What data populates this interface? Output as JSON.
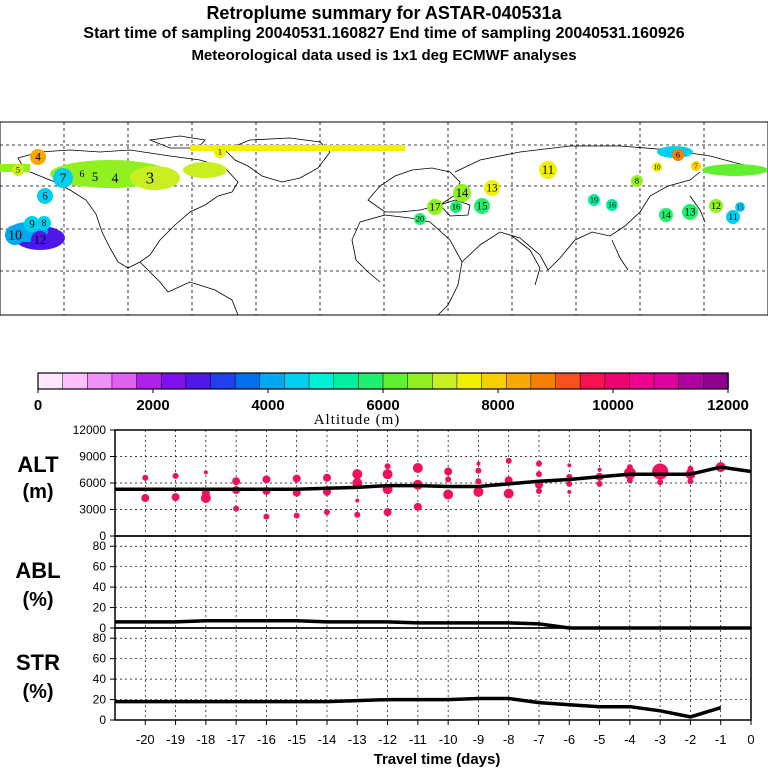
{
  "header": {
    "title": "Retroplume summary for ASTAR-040531a",
    "sampling": "Start time of sampling 20040531.160827     End time of sampling 20040531.160926",
    "met": "Meteorological data used is 1x1 deg ECMWF analyses"
  },
  "colorbar": {
    "label": "Altitude (m)",
    "ticks": [
      "0",
      "2000",
      "4000",
      "6000",
      "8000",
      "10000",
      "12000"
    ],
    "colors": [
      "#ffe8ff",
      "#ffc0ff",
      "#f090f8",
      "#e060f0",
      "#b020e8",
      "#8010f0",
      "#5018e8",
      "#2040f0",
      "#0070f0",
      "#00a8f0",
      "#00d0f0",
      "#00f0d8",
      "#00f0a0",
      "#20f070",
      "#60f030",
      "#90f020",
      "#c8f020",
      "#f0f000",
      "#f8d000",
      "#f8a800",
      "#f88000",
      "#f85020",
      "#f81050",
      "#f00070",
      "#f00090",
      "#e000a0",
      "#b000a0",
      "#900090"
    ]
  },
  "map_labels": [
    {
      "t": "4",
      "c": "#f8a800"
    },
    {
      "t": "5",
      "c": "#c8f020"
    },
    {
      "t": "6",
      "c": "#00d0f0"
    },
    {
      "t": "7",
      "c": "#00d0f0"
    },
    {
      "t": "6",
      "c": "#90f020"
    },
    {
      "t": "5",
      "c": "#90f020"
    },
    {
      "t": "4",
      "c": "#90f020"
    },
    {
      "t": "3",
      "c": "#c8f020"
    },
    {
      "t": "1",
      "c": "#f0f000"
    },
    {
      "t": "10",
      "c": "#00a8f0"
    },
    {
      "t": "9",
      "c": "#00d0f0"
    },
    {
      "t": "8",
      "c": "#00d0f0"
    },
    {
      "t": "12",
      "c": "#5018e8"
    },
    {
      "t": "14",
      "c": "#90f020"
    },
    {
      "t": "13",
      "c": "#f0f000"
    },
    {
      "t": "15",
      "c": "#20f070"
    },
    {
      "t": "16",
      "c": "#20f070"
    },
    {
      "t": "17",
      "c": "#90f020"
    },
    {
      "t": "20",
      "c": "#20f070"
    },
    {
      "t": "11",
      "c": "#f0f000"
    },
    {
      "t": "19",
      "c": "#00f0a0"
    },
    {
      "t": "16",
      "c": "#00f0a0"
    },
    {
      "t": "8",
      "c": "#90f020"
    },
    {
      "t": "10",
      "c": "#f0f000"
    },
    {
      "t": "6",
      "c": "#f88000"
    },
    {
      "t": "7",
      "c": "#f8d000"
    },
    {
      "t": "13",
      "c": "#20f070"
    },
    {
      "t": "12",
      "c": "#90f020"
    },
    {
      "t": "11",
      "c": "#00d0f0"
    },
    {
      "t": "15",
      "c": "#00d0f0"
    },
    {
      "t": "14",
      "c": "#20f070"
    }
  ],
  "panels": {
    "alt": {
      "label": [
        "ALT",
        "(m)"
      ],
      "ticks": [
        "12000",
        "9000",
        "6000",
        "3000",
        "0"
      ]
    },
    "abl": {
      "label": [
        "ABL",
        "(%)"
      ],
      "ticks": [
        "80",
        "60",
        "40",
        "20",
        "0"
      ]
    },
    "str": {
      "label": [
        "STR",
        "(%)"
      ],
      "ticks": [
        "80",
        "60",
        "40",
        "20",
        "0"
      ]
    }
  },
  "chart_data": {
    "type": "line",
    "title": "Retroplume summary for ASTAR-040531a",
    "xlabel": "Travel time (days)",
    "x_ticks": [
      "-20",
      "-19",
      "-18",
      "-17",
      "-16",
      "-15",
      "-14",
      "-13",
      "-12",
      "-11",
      "-10",
      "-9",
      "-8",
      "-7",
      "-6",
      "-5",
      "-4",
      "-3",
      "-2",
      "-1",
      "0"
    ],
    "xlim": [
      -20,
      0
    ],
    "series": [
      {
        "name": "ALT (m)",
        "ylim": [
          0,
          12000
        ],
        "x": [
          -21,
          -20,
          -19,
          -18,
          -17,
          -16,
          -15,
          -14,
          -13,
          -12,
          -11,
          -10,
          -9,
          -8,
          -7,
          -6,
          -5,
          -4,
          -3,
          -2,
          -1,
          0
        ],
        "values": [
          5300,
          5300,
          5300,
          5300,
          5300,
          5300,
          5300,
          5400,
          5500,
          5700,
          5700,
          5600,
          5600,
          5900,
          6200,
          6400,
          6700,
          7000,
          7000,
          7000,
          7800,
          7300
        ]
      },
      {
        "name": "ABL (%)",
        "ylim": [
          0,
          90
        ],
        "x": [
          -21,
          -20,
          -19,
          -18,
          -17,
          -16,
          -15,
          -14,
          -13,
          -12,
          -11,
          -10,
          -9,
          -8,
          -7,
          -6,
          -5,
          -4,
          -3,
          -2,
          -1,
          0
        ],
        "values": [
          6,
          6,
          6,
          7,
          7,
          7,
          7,
          6,
          6,
          6,
          5,
          5,
          5,
          5,
          4,
          0,
          0,
          0,
          0,
          0,
          0,
          0
        ]
      },
      {
        "name": "STR (%)",
        "ylim": [
          0,
          90
        ],
        "x": [
          -21,
          -20,
          -19,
          -18,
          -17,
          -16,
          -15,
          -14,
          -13,
          -12,
          -11,
          -10,
          -9,
          -8,
          -7,
          -6,
          -5,
          -4,
          -3,
          -2,
          -1
        ],
        "values": [
          18,
          18,
          18,
          18,
          18,
          18,
          18,
          18,
          19,
          20,
          20,
          20,
          21,
          21,
          17,
          15,
          13,
          13,
          9,
          3,
          12
        ]
      }
    ],
    "alt_scatter": {
      "color": "#f01060",
      "points": [
        {
          "d": -20,
          "y": 6600,
          "r": 3
        },
        {
          "d": -20,
          "y": 4300,
          "r": 4
        },
        {
          "d": -19,
          "y": 6800,
          "r": 3
        },
        {
          "d": -19,
          "y": 4400,
          "r": 4
        },
        {
          "d": -18,
          "y": 7200,
          "r": 2
        },
        {
          "d": -18,
          "y": 4900,
          "r": 4
        },
        {
          "d": -18,
          "y": 4300,
          "r": 5
        },
        {
          "d": -17,
          "y": 6200,
          "r": 4
        },
        {
          "d": -17,
          "y": 5200,
          "r": 4
        },
        {
          "d": -17,
          "y": 3100,
          "r": 3
        },
        {
          "d": -16,
          "y": 6400,
          "r": 4
        },
        {
          "d": -16,
          "y": 5100,
          "r": 4
        },
        {
          "d": -16,
          "y": 2200,
          "r": 3
        },
        {
          "d": -15,
          "y": 6500,
          "r": 4
        },
        {
          "d": -15,
          "y": 4900,
          "r": 4
        },
        {
          "d": -15,
          "y": 2300,
          "r": 3
        },
        {
          "d": -14,
          "y": 6600,
          "r": 4
        },
        {
          "d": -14,
          "y": 5000,
          "r": 4
        },
        {
          "d": -14,
          "y": 2700,
          "r": 3
        },
        {
          "d": -13,
          "y": 7000,
          "r": 5
        },
        {
          "d": -13,
          "y": 6000,
          "r": 5
        },
        {
          "d": -13,
          "y": 4000,
          "r": 2
        },
        {
          "d": -13,
          "y": 2400,
          "r": 3
        },
        {
          "d": -12,
          "y": 7900,
          "r": 3
        },
        {
          "d": -12,
          "y": 7000,
          "r": 5
        },
        {
          "d": -12,
          "y": 5300,
          "r": 5
        },
        {
          "d": -12,
          "y": 2700,
          "r": 4
        },
        {
          "d": -11,
          "y": 7700,
          "r": 5
        },
        {
          "d": -11,
          "y": 5800,
          "r": 5
        },
        {
          "d": -11,
          "y": 3300,
          "r": 4
        },
        {
          "d": -10,
          "y": 7300,
          "r": 4
        },
        {
          "d": -10,
          "y": 6400,
          "r": 3
        },
        {
          "d": -10,
          "y": 4700,
          "r": 5
        },
        {
          "d": -9,
          "y": 8200,
          "r": 2
        },
        {
          "d": -9,
          "y": 7400,
          "r": 3
        },
        {
          "d": -9,
          "y": 6200,
          "r": 3
        },
        {
          "d": -9,
          "y": 5000,
          "r": 5
        },
        {
          "d": -8,
          "y": 8500,
          "r": 3
        },
        {
          "d": -8,
          "y": 6300,
          "r": 4
        },
        {
          "d": -8,
          "y": 4800,
          "r": 5
        },
        {
          "d": -7,
          "y": 8200,
          "r": 3
        },
        {
          "d": -7,
          "y": 7000,
          "r": 3
        },
        {
          "d": -7,
          "y": 5800,
          "r": 4
        },
        {
          "d": -7,
          "y": 5100,
          "r": 3
        },
        {
          "d": -6,
          "y": 8000,
          "r": 2
        },
        {
          "d": -6,
          "y": 6700,
          "r": 3
        },
        {
          "d": -6,
          "y": 5900,
          "r": 3
        },
        {
          "d": -6,
          "y": 5000,
          "r": 2
        },
        {
          "d": -5,
          "y": 7500,
          "r": 2
        },
        {
          "d": -5,
          "y": 6700,
          "r": 4
        },
        {
          "d": -5,
          "y": 5900,
          "r": 3
        },
        {
          "d": -4,
          "y": 7800,
          "r": 3
        },
        {
          "d": -4,
          "y": 7100,
          "r": 6
        },
        {
          "d": -4,
          "y": 6300,
          "r": 3
        },
        {
          "d": -3,
          "y": 7300,
          "r": 8
        },
        {
          "d": -3,
          "y": 6100,
          "r": 3
        },
        {
          "d": -2,
          "y": 7600,
          "r": 3
        },
        {
          "d": -2,
          "y": 7000,
          "r": 5
        },
        {
          "d": -2,
          "y": 6200,
          "r": 3
        },
        {
          "d": -1,
          "y": 7800,
          "r": 5
        }
      ]
    }
  }
}
